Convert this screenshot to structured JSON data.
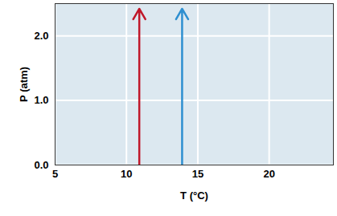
{
  "chart_data": {
    "type": "arrow",
    "xlabel": "T (°C)",
    "ylabel": "P (atm)",
    "series": [
      {
        "color": "#c0182a",
        "x": [
          10.9,
          10.9
        ],
        "values": [
          0,
          2.42
        ]
      },
      {
        "color": "#2e8fd0",
        "x": [
          13.9,
          13.9
        ],
        "values": [
          0,
          2.42
        ]
      }
    ],
    "xlim": [
      5,
      24.5
    ],
    "ylim": [
      0,
      2.5
    ],
    "xticks": [
      5,
      10,
      15,
      20
    ],
    "yticks": [
      0,
      1,
      2
    ],
    "grid": true
  }
}
